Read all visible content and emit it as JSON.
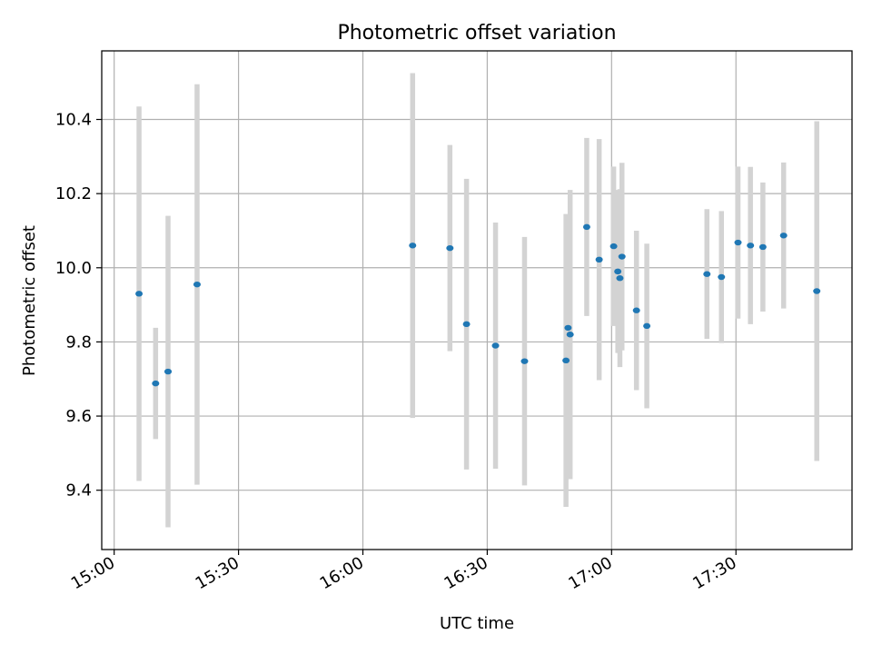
{
  "chart_data": {
    "type": "scatter",
    "title": "Photometric offset variation",
    "xlabel": "UTC time",
    "ylabel": "Photometric offset",
    "xlim": [
      "14:57",
      "17:58"
    ],
    "ylim": [
      9.24,
      10.585
    ],
    "x_ticks": [
      "15:00",
      "15:30",
      "16:00",
      "16:30",
      "17:00",
      "17:30"
    ],
    "y_ticks": [
      "9.4",
      "9.6",
      "9.8",
      "10.0",
      "10.2",
      "10.4"
    ],
    "grid": true,
    "colors": {
      "point": "#1f77b4",
      "errorbar": "#d3d3d3",
      "grid": "#b0b0b0",
      "axes": "#000000"
    },
    "points": [
      {
        "t": "15:06",
        "y": 9.93,
        "err": 0.505
      },
      {
        "t": "15:10",
        "y": 9.688,
        "err": 0.15
      },
      {
        "t": "15:13",
        "y": 9.72,
        "err": 0.42
      },
      {
        "t": "15:20",
        "y": 9.955,
        "err": 0.54
      },
      {
        "t": "16:12",
        "y": 10.06,
        "err": 0.465
      },
      {
        "t": "16:21",
        "y": 10.053,
        "err": 0.278
      },
      {
        "t": "16:25",
        "y": 9.848,
        "err": 0.392
      },
      {
        "t": "16:32",
        "y": 9.79,
        "err": 0.332
      },
      {
        "t": "16:39",
        "y": 9.748,
        "err": 0.335
      },
      {
        "t": "16:49",
        "y": 9.75,
        "err": 0.395
      },
      {
        "t": "16:49.5",
        "y": 9.838,
        "err": 0.25
      },
      {
        "t": "16:50",
        "y": 9.82,
        "err": 0.39
      },
      {
        "t": "16:54",
        "y": 10.11,
        "err": 0.24
      },
      {
        "t": "16:57",
        "y": 10.022,
        "err": 0.325
      },
      {
        "t": "17:00.5",
        "y": 10.058,
        "err": 0.215
      },
      {
        "t": "17:01.5",
        "y": 9.99,
        "err": 0.22
      },
      {
        "t": "17:02",
        "y": 9.972,
        "err": 0.24
      },
      {
        "t": "17:02.5",
        "y": 10.03,
        "err": 0.253
      },
      {
        "t": "17:06",
        "y": 9.885,
        "err": 0.215
      },
      {
        "t": "17:08.5",
        "y": 9.843,
        "err": 0.222
      },
      {
        "t": "17:23",
        "y": 9.983,
        "err": 0.175
      },
      {
        "t": "17:26.5",
        "y": 9.975,
        "err": 0.178
      },
      {
        "t": "17:30.5",
        "y": 10.068,
        "err": 0.205
      },
      {
        "t": "17:33.5",
        "y": 10.06,
        "err": 0.212
      },
      {
        "t": "17:36.5",
        "y": 10.056,
        "err": 0.174
      },
      {
        "t": "17:41.5",
        "y": 10.087,
        "err": 0.197
      },
      {
        "t": "17:49.5",
        "y": 9.937,
        "err": 0.458
      }
    ]
  }
}
